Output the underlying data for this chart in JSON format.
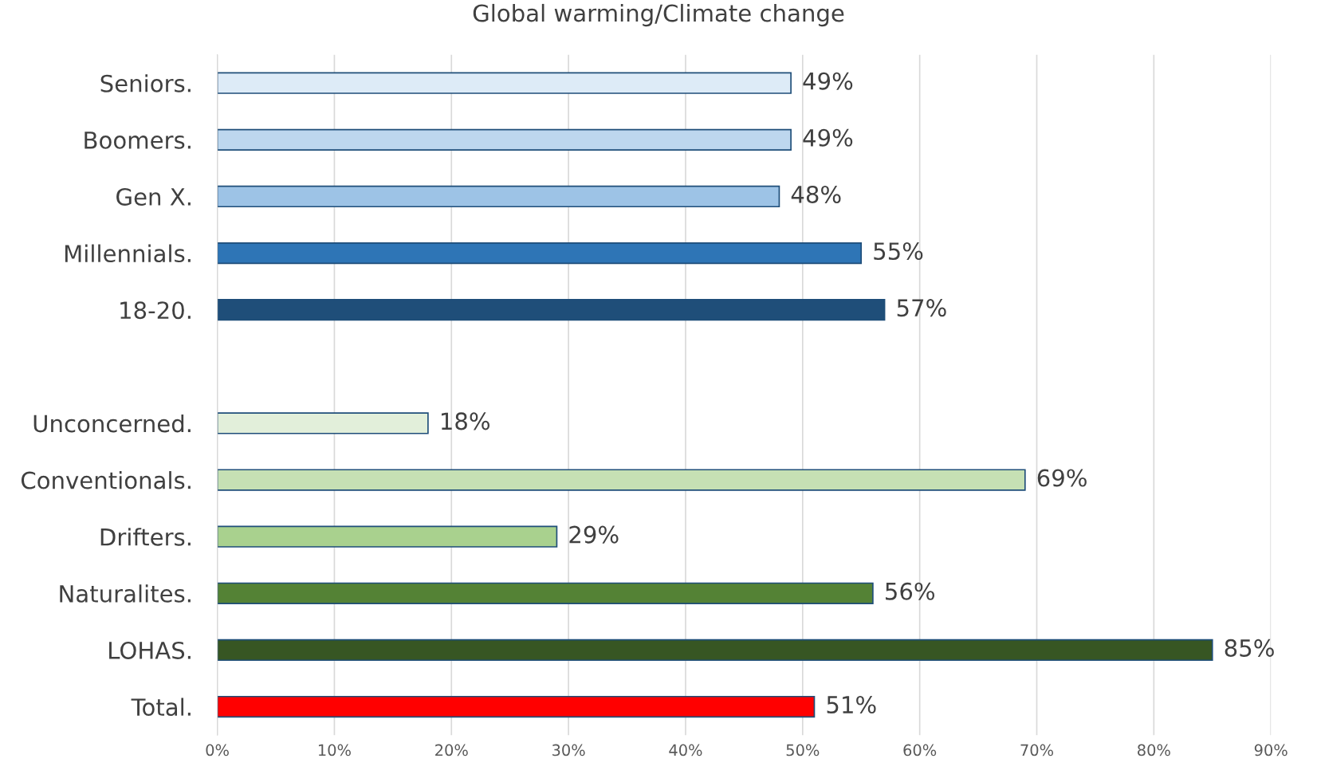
{
  "chart_data": {
    "type": "bar",
    "orientation": "horizontal",
    "title": "Global warming/Climate change",
    "categories": [
      "Seniors.",
      "Boomers.",
      "Gen X.",
      "Millennials.",
      "18-20.",
      null,
      "Unconcerned.",
      "Conventionals.",
      "Drifters.",
      "Naturalites.",
      "LOHAS.",
      "Total."
    ],
    "values": [
      49,
      49,
      48,
      55,
      57,
      null,
      18,
      69,
      29,
      56,
      85,
      51
    ],
    "value_labels": [
      "49%",
      "49%",
      "48%",
      "55%",
      "57%",
      null,
      "18%",
      "69%",
      "29%",
      "56%",
      "85%",
      "51%"
    ],
    "colors": [
      "#ddebf7",
      "#bdd7ee",
      "#9dc3e6",
      "#2e75b6",
      "#1f4e79",
      null,
      "#e2efda",
      "#c6e0b4",
      "#a9d18e",
      "#548235",
      "#375623",
      "#ff0000"
    ],
    "xlim": [
      0,
      90
    ],
    "xticks": [
      {
        "value": 0,
        "label": "0%"
      },
      {
        "value": 10,
        "label": "10%"
      },
      {
        "value": 20,
        "label": "20%"
      },
      {
        "value": 30,
        "label": "30%"
      },
      {
        "value": 40,
        "label": "40%"
      },
      {
        "value": 50,
        "label": "50%"
      },
      {
        "value": 60,
        "label": "60%"
      },
      {
        "value": 70,
        "label": "70%"
      },
      {
        "value": 80,
        "label": "80%"
      },
      {
        "value": 90,
        "label": "90%"
      }
    ],
    "grid": "x",
    "legend": false
  }
}
